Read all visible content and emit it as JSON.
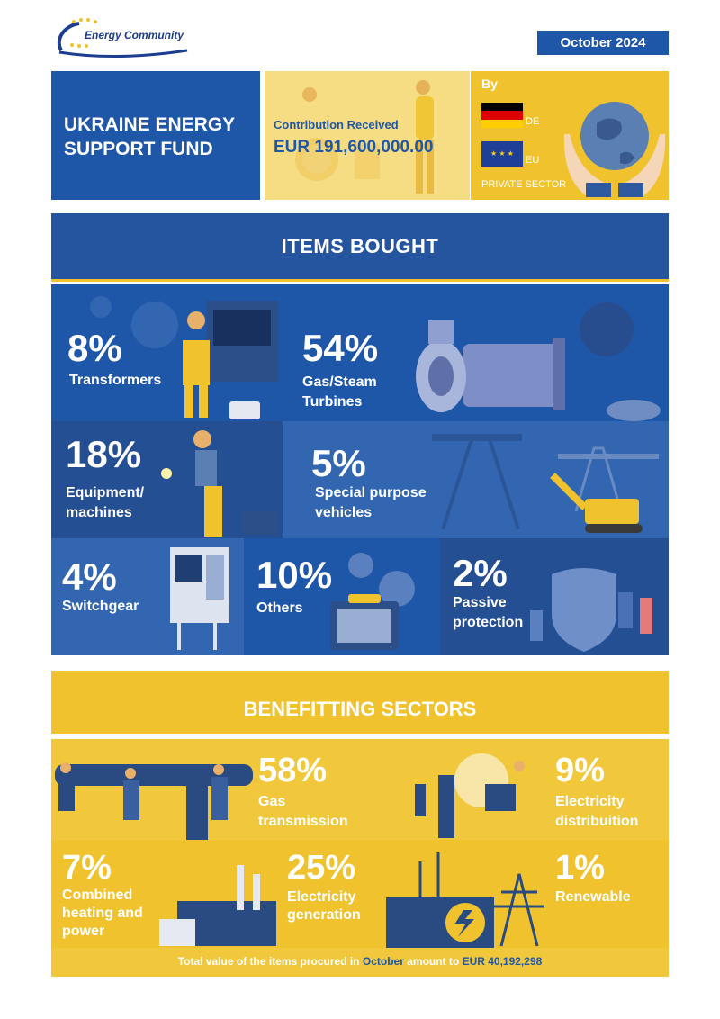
{
  "header": {
    "logo_text": "Energy Community",
    "date": "October 2024"
  },
  "fund": {
    "title_line1": "UKRAINE ENERGY",
    "title_line2": "SUPPORT FUND",
    "contribution_label": "Contribution Received",
    "contribution_value": "EUR 191,600,000.00",
    "by_label": "By",
    "donors": [
      {
        "code": "DE"
      },
      {
        "code": "EU"
      }
    ],
    "private_sector": "PRIVATE SECTOR"
  },
  "items": {
    "title": "ITEMS BOUGHT",
    "tiles": [
      {
        "pct": "8%",
        "label_1": "Transformers",
        "label_2": ""
      },
      {
        "pct": "54%",
        "label_1": "Gas/Steam",
        "label_2": "Turbines"
      },
      {
        "pct": "18%",
        "label_1": "Equipment/",
        "label_2": "machines"
      },
      {
        "pct": "5%",
        "label_1": "Special purpose",
        "label_2": "vehicles"
      },
      {
        "pct": "4%",
        "label_1": "Switchgear",
        "label_2": ""
      },
      {
        "pct": "10%",
        "label_1": "Others",
        "label_2": ""
      },
      {
        "pct": "2%",
        "label_1": "Passive",
        "label_2": "protection"
      }
    ]
  },
  "sectors": {
    "title": "BENEFITTING SECTORS",
    "tiles": [
      {
        "pct": "58%",
        "label_1": "Gas",
        "label_2": "transmission",
        "label_3": ""
      },
      {
        "pct": "9%",
        "label_1": "Electricity",
        "label_2": "distribuition",
        "label_3": ""
      },
      {
        "pct": "7%",
        "label_1": "Combined",
        "label_2": "heating and",
        "label_3": "power"
      },
      {
        "pct": "25%",
        "label_1": "Electricity",
        "label_2": "generation",
        "label_3": ""
      },
      {
        "pct": "1%",
        "label_1": "Renewable",
        "label_2": "",
        "label_3": ""
      }
    ],
    "footer_pre": "Total value of the items procured in",
    "footer_month": "October",
    "footer_mid": "amount to",
    "footer_total": "EUR 40,192,298"
  },
  "colors": {
    "blue_primary": "#1f57a8",
    "blue_dark": "#244f93",
    "yellow": "#f0c32e",
    "yellow_light": "#f6dc82"
  }
}
